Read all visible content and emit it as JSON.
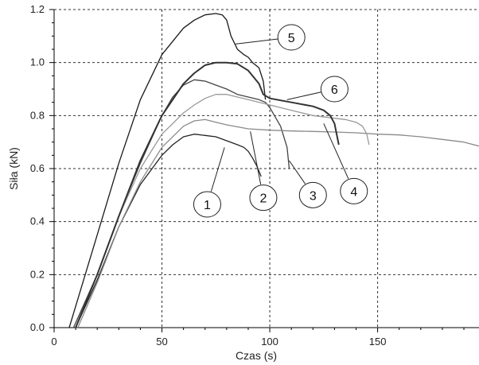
{
  "chart_data": {
    "type": "line",
    "title": "",
    "xlabel": "Czas (s)",
    "ylabel": "Siła (kN)",
    "xlim": [
      0,
      197
    ],
    "ylim": [
      0,
      1.2
    ],
    "x_ticks": [
      0,
      50,
      100,
      150
    ],
    "y_ticks": [
      0.0,
      0.2,
      0.4,
      0.6,
      0.8,
      1.0,
      1.2
    ],
    "y_tick_labels": [
      "0.0",
      "0.2",
      "0.4",
      "0.6",
      "0.8",
      "1.0",
      "1.2"
    ],
    "grid": true,
    "series": [
      {
        "name": "1",
        "color": "#222222",
        "x": [
          10,
          20,
          30,
          40,
          50,
          55,
          60,
          65,
          70,
          75,
          80,
          85,
          88,
          90,
          92,
          94,
          96
        ],
        "y": [
          0.0,
          0.18,
          0.38,
          0.54,
          0.65,
          0.69,
          0.72,
          0.73,
          0.725,
          0.72,
          0.705,
          0.69,
          0.68,
          0.665,
          0.64,
          0.61,
          0.57
        ]
      },
      {
        "name": "2",
        "color": "#444444",
        "x": [
          9,
          20,
          30,
          40,
          50,
          55,
          60,
          65,
          70,
          75,
          80,
          85,
          90,
          95,
          98,
          100,
          105,
          108,
          109
        ],
        "y": [
          0.0,
          0.2,
          0.42,
          0.62,
          0.8,
          0.87,
          0.915,
          0.935,
          0.93,
          0.915,
          0.9,
          0.88,
          0.87,
          0.86,
          0.85,
          0.83,
          0.76,
          0.68,
          0.6
        ]
      },
      {
        "name": "3",
        "color": "#8a8a8a",
        "x": [
          11,
          20,
          30,
          40,
          50,
          60,
          65,
          70,
          75,
          80,
          90,
          100,
          110,
          120,
          130,
          140,
          150,
          160,
          170,
          180,
          190,
          197
        ],
        "y": [
          0.0,
          0.17,
          0.38,
          0.55,
          0.68,
          0.76,
          0.78,
          0.785,
          0.775,
          0.765,
          0.75,
          0.745,
          0.742,
          0.74,
          0.738,
          0.735,
          0.73,
          0.727,
          0.72,
          0.71,
          0.7,
          0.685
        ]
      },
      {
        "name": "4",
        "color": "#999999",
        "x": [
          10,
          20,
          30,
          40,
          50,
          60,
          65,
          70,
          75,
          80,
          85,
          90,
          100,
          110,
          120,
          130,
          135,
          140,
          143,
          145,
          146
        ],
        "y": [
          0.0,
          0.2,
          0.42,
          0.6,
          0.73,
          0.81,
          0.84,
          0.865,
          0.88,
          0.88,
          0.87,
          0.86,
          0.84,
          0.82,
          0.8,
          0.79,
          0.785,
          0.775,
          0.76,
          0.73,
          0.69
        ]
      },
      {
        "name": "5",
        "color": "#1a1a1a",
        "x": [
          7,
          20,
          30,
          40,
          50,
          60,
          65,
          70,
          75,
          78,
          80,
          82,
          85,
          88,
          90,
          92,
          95,
          97,
          98
        ],
        "y": [
          0.0,
          0.35,
          0.62,
          0.86,
          1.03,
          1.13,
          1.16,
          1.18,
          1.185,
          1.18,
          1.16,
          1.1,
          1.05,
          1.03,
          1.02,
          1.0,
          0.98,
          0.93,
          0.86
        ]
      },
      {
        "name": "6",
        "color": "#333333",
        "x": [
          10,
          20,
          30,
          40,
          50,
          60,
          65,
          70,
          75,
          80,
          85,
          90,
          95,
          97,
          100,
          110,
          120,
          125,
          128,
          130,
          131,
          132
        ],
        "y": [
          0.0,
          0.2,
          0.42,
          0.63,
          0.8,
          0.92,
          0.96,
          0.99,
          1.0,
          1.0,
          0.995,
          0.97,
          0.92,
          0.88,
          0.865,
          0.85,
          0.835,
          0.82,
          0.8,
          0.77,
          0.73,
          0.69
        ]
      }
    ],
    "callouts": [
      {
        "label": "1",
        "target": [
          79,
          0.68
        ],
        "circle": [
          71,
          0.465
        ]
      },
      {
        "label": "2",
        "target": [
          91,
          0.74
        ],
        "circle": [
          97,
          0.49
        ]
      },
      {
        "label": "3",
        "target": [
          109,
          0.63
        ],
        "circle": [
          120,
          0.5
        ]
      },
      {
        "label": "4",
        "target": [
          125,
          0.77
        ],
        "circle": [
          139,
          0.515
        ]
      },
      {
        "label": "5",
        "target": [
          84,
          1.07
        ],
        "circle": [
          110,
          1.095
        ]
      },
      {
        "label": "6",
        "target": [
          108,
          0.86
        ],
        "circle": [
          130,
          0.9
        ]
      }
    ]
  }
}
